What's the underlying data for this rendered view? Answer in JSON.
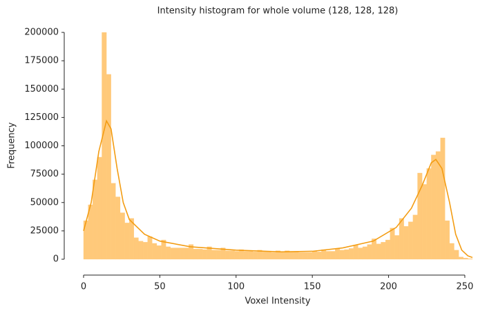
{
  "chart_data": {
    "type": "histogram",
    "title": "Intensity histogram for whole volume (128, 128, 128)",
    "x_label": "Voxel Intensity",
    "y_label": "Frequency",
    "color": "#ffc97a",
    "bins": [
      0,
      3,
      6,
      9,
      12,
      15,
      18,
      21,
      24,
      27,
      30,
      33,
      36,
      39,
      42,
      45,
      48,
      51,
      54,
      57,
      60,
      63,
      66,
      69,
      72,
      75,
      78,
      81,
      84,
      87,
      90,
      93,
      96,
      99,
      102,
      105,
      108,
      111,
      114,
      117,
      120,
      123,
      126,
      129,
      132,
      135,
      138,
      141,
      144,
      147,
      150,
      153,
      156,
      159,
      162,
      165,
      168,
      171,
      174,
      177,
      180,
      183,
      186,
      189,
      192,
      195,
      198,
      201,
      204,
      207,
      210,
      213,
      216,
      219,
      222,
      225,
      228,
      231,
      234,
      237,
      240,
      243,
      246,
      249,
      252,
      255
    ],
    "counts": [
      34000,
      48000,
      70000,
      90000,
      200000,
      163000,
      67000,
      55000,
      41000,
      32000,
      36000,
      19000,
      16000,
      15000,
      20000,
      14000,
      12000,
      17000,
      11000,
      10000,
      10000,
      10000,
      10000,
      13000,
      9000,
      9000,
      8500,
      11000,
      8000,
      8000,
      10000,
      7500,
      7500,
      7000,
      8500,
      7000,
      7000,
      6500,
      8000,
      6500,
      6500,
      6000,
      7500,
      6000,
      7500,
      6500,
      6500,
      6000,
      6000,
      6000,
      7000,
      6500,
      8500,
      7000,
      7000,
      9500,
      8000,
      8500,
      9500,
      12500,
      10000,
      11000,
      13000,
      18000,
      13500,
      15000,
      17000,
      27500,
      21000,
      36000,
      29000,
      33000,
      39000,
      76000,
      66000,
      80000,
      92000,
      95000,
      107000,
      34000,
      14000,
      8000,
      2000,
      1000,
      500
    ],
    "kde": {
      "color": "#f39c12",
      "x": [
        0,
        5,
        10,
        15,
        18,
        22,
        26,
        30,
        40,
        50,
        70,
        100,
        130,
        150,
        170,
        190,
        205,
        215,
        222,
        228,
        231,
        235,
        240,
        244,
        248,
        252,
        255
      ],
      "values": [
        25000,
        50000,
        95000,
        122000,
        115000,
        80000,
        50000,
        35000,
        22000,
        16000,
        11000,
        8000,
        6500,
        7000,
        10000,
        16000,
        28000,
        45000,
        65000,
        85000,
        88000,
        80000,
        50000,
        22000,
        8000,
        3000,
        1500
      ]
    },
    "xlim": [
      0,
      255
    ],
    "ylim": [
      0,
      200000
    ],
    "xticks": [
      0,
      50,
      100,
      150,
      200,
      250
    ],
    "yticks": [
      0,
      25000,
      50000,
      75000,
      100000,
      125000,
      150000,
      175000,
      200000
    ]
  }
}
